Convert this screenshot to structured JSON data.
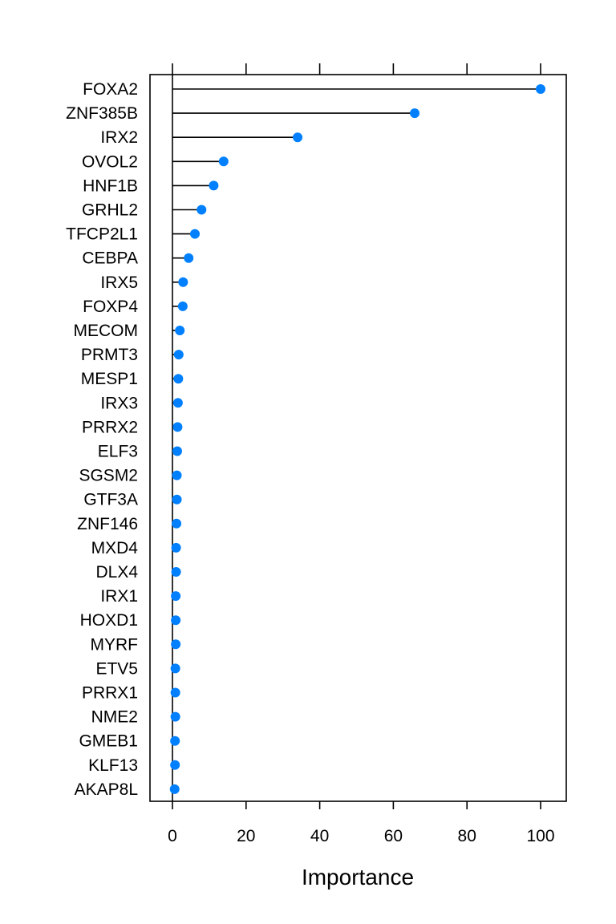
{
  "chart_data": {
    "type": "dotplot",
    "xlabel": "Importance",
    "ylabel": "",
    "xlim": [
      -6,
      107
    ],
    "xticks": [
      0,
      20,
      40,
      60,
      80,
      100
    ],
    "grid": false,
    "point_color": "#0080ff",
    "categories": [
      "FOXA2",
      "ZNF385B",
      "IRX2",
      "OVOL2",
      "HNF1B",
      "GRHL2",
      "TFCP2L1",
      "CEBPA",
      "IRX5",
      "FOXP4",
      "MECOM",
      "PRMT3",
      "MESP1",
      "IRX3",
      "PRRX2",
      "ELF3",
      "SGSM2",
      "GTF3A",
      "ZNF146",
      "MXD4",
      "DLX4",
      "IRX1",
      "HOXD1",
      "MYRF",
      "ETV5",
      "PRRX1",
      "NME2",
      "GMEB1",
      "KLF13",
      "AKAP8L"
    ],
    "values": [
      100,
      65.8,
      34,
      13.9,
      11.2,
      7.9,
      6.1,
      4.4,
      2.9,
      2.8,
      2.0,
      1.7,
      1.6,
      1.5,
      1.4,
      1.3,
      1.2,
      1.2,
      1.1,
      1.0,
      1.0,
      0.9,
      0.9,
      0.9,
      0.8,
      0.8,
      0.8,
      0.7,
      0.7,
      0.6
    ]
  }
}
